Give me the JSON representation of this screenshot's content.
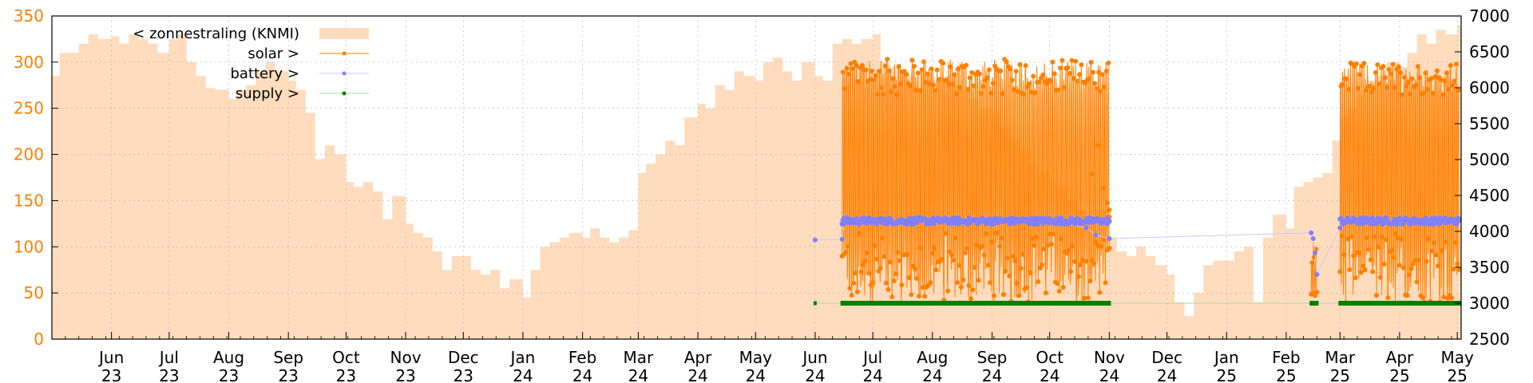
{
  "chart_data": {
    "type": "line",
    "title": "",
    "xlim": [
      "2023-05-01",
      "2025-05-03"
    ],
    "ylim_left": [
      0,
      350
    ],
    "ylim_right": [
      2500,
      7000
    ],
    "grid": true,
    "legend_placement": "top-left",
    "y_left_ticks": [
      0,
      50,
      100,
      150,
      200,
      250,
      300,
      350
    ],
    "y_right_ticks": [
      2500,
      3000,
      3500,
      4000,
      4500,
      5000,
      5500,
      6000,
      6500,
      7000
    ],
    "x_ticks": [
      {
        "date": "2023-06-01",
        "month": "Jun",
        "year": "23"
      },
      {
        "date": "2023-07-01",
        "month": "Jul",
        "year": "23"
      },
      {
        "date": "2023-08-01",
        "month": "Aug",
        "year": "23"
      },
      {
        "date": "2023-09-01",
        "month": "Sep",
        "year": "23"
      },
      {
        "date": "2023-10-01",
        "month": "Oct",
        "year": "23"
      },
      {
        "date": "2023-11-01",
        "month": "Nov",
        "year": "23"
      },
      {
        "date": "2023-12-01",
        "month": "Dec",
        "year": "23"
      },
      {
        "date": "2024-01-01",
        "month": "Jan",
        "year": "24"
      },
      {
        "date": "2024-02-01",
        "month": "Feb",
        "year": "24"
      },
      {
        "date": "2024-03-01",
        "month": "Mar",
        "year": "24"
      },
      {
        "date": "2024-04-01",
        "month": "Apr",
        "year": "24"
      },
      {
        "date": "2024-05-01",
        "month": "May",
        "year": "24"
      },
      {
        "date": "2024-06-01",
        "month": "Jun",
        "year": "24"
      },
      {
        "date": "2024-07-01",
        "month": "Jul",
        "year": "24"
      },
      {
        "date": "2024-08-01",
        "month": "Aug",
        "year": "24"
      },
      {
        "date": "2024-09-01",
        "month": "Sep",
        "year": "24"
      },
      {
        "date": "2024-10-01",
        "month": "Oct",
        "year": "24"
      },
      {
        "date": "2024-11-01",
        "month": "Nov",
        "year": "24"
      },
      {
        "date": "2024-12-01",
        "month": "Dec",
        "year": "24"
      },
      {
        "date": "2025-01-01",
        "month": "Jan",
        "year": "25"
      },
      {
        "date": "2025-02-01",
        "month": "Feb",
        "year": "25"
      },
      {
        "date": "2025-03-01",
        "month": "Mar",
        "year": "25"
      },
      {
        "date": "2025-04-01",
        "month": "Apr",
        "year": "25"
      },
      {
        "date": "2025-05-01",
        "month": "May",
        "year": "25"
      }
    ],
    "colors": {
      "zonnestraling": "#ffdcbd",
      "solar": "#ff8000",
      "battery": "#8080ff",
      "supply": "#007f00",
      "left_axis": "#ff8000"
    },
    "series": [
      {
        "name": "< zonnestraling (KNMI)",
        "axis": "left",
        "style": "area",
        "points": [
          [
            "2023-05-01",
            285
          ],
          [
            "2023-05-05",
            310
          ],
          [
            "2023-05-10",
            310
          ],
          [
            "2023-05-15",
            320
          ],
          [
            "2023-05-20",
            330
          ],
          [
            "2023-05-25",
            325
          ],
          [
            "2023-06-01",
            328
          ],
          [
            "2023-06-05",
            320
          ],
          [
            "2023-06-10",
            330
          ],
          [
            "2023-06-15",
            325
          ],
          [
            "2023-06-20",
            320
          ],
          [
            "2023-06-25",
            310
          ],
          [
            "2023-07-01",
            325
          ],
          [
            "2023-07-05",
            330
          ],
          [
            "2023-07-10",
            300
          ],
          [
            "2023-07-15",
            285
          ],
          [
            "2023-07-20",
            272
          ],
          [
            "2023-07-25",
            270
          ],
          [
            "2023-08-01",
            260
          ],
          [
            "2023-08-05",
            270
          ],
          [
            "2023-08-10",
            275
          ],
          [
            "2023-08-15",
            290
          ],
          [
            "2023-08-20",
            300
          ],
          [
            "2023-08-25",
            290
          ],
          [
            "2023-09-01",
            280
          ],
          [
            "2023-09-05",
            270
          ],
          [
            "2023-09-10",
            245
          ],
          [
            "2023-09-15",
            195
          ],
          [
            "2023-09-20",
            210
          ],
          [
            "2023-09-25",
            200
          ],
          [
            "2023-10-01",
            170
          ],
          [
            "2023-10-05",
            165
          ],
          [
            "2023-10-10",
            170
          ],
          [
            "2023-10-15",
            160
          ],
          [
            "2023-10-20",
            130
          ],
          [
            "2023-10-25",
            155
          ],
          [
            "2023-11-01",
            125
          ],
          [
            "2023-11-05",
            115
          ],
          [
            "2023-11-10",
            110
          ],
          [
            "2023-11-15",
            95
          ],
          [
            "2023-11-20",
            75
          ],
          [
            "2023-11-25",
            90
          ],
          [
            "2023-12-01",
            90
          ],
          [
            "2023-12-05",
            75
          ],
          [
            "2023-12-10",
            70
          ],
          [
            "2023-12-15",
            75
          ],
          [
            "2023-12-20",
            55
          ],
          [
            "2023-12-25",
            65
          ],
          [
            "2024-01-01",
            45
          ],
          [
            "2024-01-05",
            75
          ],
          [
            "2024-01-10",
            100
          ],
          [
            "2024-01-15",
            105
          ],
          [
            "2024-01-20",
            110
          ],
          [
            "2024-01-25",
            115
          ],
          [
            "2024-02-01",
            110
          ],
          [
            "2024-02-05",
            120
          ],
          [
            "2024-02-10",
            110
          ],
          [
            "2024-02-15",
            105
          ],
          [
            "2024-02-20",
            110
          ],
          [
            "2024-02-25",
            118
          ],
          [
            "2024-03-01",
            180
          ],
          [
            "2024-03-05",
            190
          ],
          [
            "2024-03-10",
            200
          ],
          [
            "2024-03-15",
            215
          ],
          [
            "2024-03-20",
            210
          ],
          [
            "2024-03-25",
            240
          ],
          [
            "2024-04-01",
            255
          ],
          [
            "2024-04-05",
            250
          ],
          [
            "2024-04-10",
            275
          ],
          [
            "2024-04-15",
            270
          ],
          [
            "2024-04-20",
            290
          ],
          [
            "2024-04-25",
            285
          ],
          [
            "2024-05-01",
            280
          ],
          [
            "2024-05-05",
            300
          ],
          [
            "2024-05-10",
            305
          ],
          [
            "2024-05-15",
            290
          ],
          [
            "2024-05-20",
            280
          ],
          [
            "2024-05-25",
            300
          ],
          [
            "2024-06-01",
            285
          ],
          [
            "2024-06-05",
            280
          ],
          [
            "2024-06-10",
            320
          ],
          [
            "2024-06-15",
            325
          ],
          [
            "2024-06-20",
            320
          ],
          [
            "2024-06-25",
            325
          ],
          [
            "2024-07-01",
            330
          ],
          [
            "2024-07-05",
            300
          ],
          [
            "2024-07-10",
            295
          ],
          [
            "2024-07-15",
            290
          ],
          [
            "2024-07-20",
            285
          ],
          [
            "2024-07-25",
            290
          ],
          [
            "2024-08-01",
            280
          ],
          [
            "2024-08-05",
            285
          ],
          [
            "2024-08-10",
            275
          ],
          [
            "2024-08-15",
            270
          ],
          [
            "2024-08-20",
            260
          ],
          [
            "2024-08-25",
            250
          ],
          [
            "2024-09-01",
            245
          ],
          [
            "2024-09-05",
            230
          ],
          [
            "2024-09-10",
            215
          ],
          [
            "2024-09-15",
            205
          ],
          [
            "2024-09-20",
            190
          ],
          [
            "2024-09-25",
            180
          ],
          [
            "2024-10-01",
            170
          ],
          [
            "2024-10-05",
            165
          ],
          [
            "2024-10-10",
            150
          ],
          [
            "2024-10-15",
            140
          ],
          [
            "2024-10-20",
            130
          ],
          [
            "2024-10-25",
            140
          ],
          [
            "2024-11-01",
            110
          ],
          [
            "2024-11-05",
            95
          ],
          [
            "2024-11-10",
            90
          ],
          [
            "2024-11-15",
            100
          ],
          [
            "2024-11-20",
            90
          ],
          [
            "2024-11-25",
            80
          ],
          [
            "2024-12-01",
            70
          ],
          [
            "2024-12-05",
            40
          ],
          [
            "2024-12-10",
            25
          ],
          [
            "2024-12-15",
            50
          ],
          [
            "2024-12-20",
            80
          ],
          [
            "2024-12-25",
            85
          ],
          [
            "2025-01-01",
            85
          ],
          [
            "2025-01-05",
            95
          ],
          [
            "2025-01-10",
            100
          ],
          [
            "2025-01-15",
            40
          ],
          [
            "2025-01-20",
            110
          ],
          [
            "2025-01-25",
            135
          ],
          [
            "2025-02-01",
            120
          ],
          [
            "2025-02-05",
            165
          ],
          [
            "2025-02-10",
            170
          ],
          [
            "2025-02-15",
            175
          ],
          [
            "2025-02-20",
            180
          ],
          [
            "2025-02-25",
            215
          ],
          [
            "2025-03-01",
            240
          ],
          [
            "2025-03-05",
            250
          ],
          [
            "2025-03-10",
            265
          ],
          [
            "2025-03-15",
            280
          ],
          [
            "2025-03-20",
            285
          ],
          [
            "2025-03-25",
            300
          ],
          [
            "2025-04-01",
            295
          ],
          [
            "2025-04-05",
            310
          ],
          [
            "2025-04-10",
            330
          ],
          [
            "2025-04-15",
            320
          ],
          [
            "2025-04-20",
            335
          ],
          [
            "2025-04-25",
            330
          ],
          [
            "2025-05-01",
            340
          ],
          [
            "2025-05-03",
            335
          ]
        ]
      },
      {
        "name": "solar >",
        "axis": "right",
        "style": "linespoints",
        "periods": [
          {
            "start": "2024-06-15",
            "end": "2024-11-01",
            "high": [
              5900,
              6400
            ],
            "low": [
              3000,
              4000
            ]
          },
          {
            "start": "2025-02-14",
            "end": "2025-02-17",
            "high": [
              3500,
              3900
            ],
            "low": [
              3050,
              3300
            ]
          },
          {
            "start": "2025-03-01",
            "end": "2025-05-02",
            "high": [
              5900,
              6350
            ],
            "low": [
              3000,
              4000
            ]
          }
        ],
        "drops": [
          [
            "2024-10-23",
            4800
          ],
          [
            "2024-10-26",
            5200
          ],
          [
            "2024-10-29",
            4600
          ],
          [
            "2024-11-01",
            4200
          ],
          [
            "2024-11-01",
            4300
          ],
          [
            "2024-10-31",
            4400
          ]
        ]
      },
      {
        "name": "battery >",
        "axis": "right",
        "style": "linespoints",
        "points": [
          [
            "2024-06-01",
            3880
          ],
          [
            "2024-06-15",
            3890
          ],
          [
            "2024-06-16",
            4100
          ],
          [
            "2024-07-01",
            4150
          ],
          [
            "2024-08-01",
            4160
          ],
          [
            "2024-09-01",
            4160
          ],
          [
            "2024-10-01",
            4150
          ],
          [
            "2024-10-20",
            4050
          ],
          [
            "2024-10-25",
            3950
          ],
          [
            "2024-11-01",
            3900
          ],
          [
            "2025-02-14",
            3980
          ],
          [
            "2025-02-15",
            3900
          ],
          [
            "2025-02-16",
            3700
          ],
          [
            "2025-02-17",
            3400
          ],
          [
            "2025-03-01",
            4050
          ],
          [
            "2025-03-02",
            4150
          ],
          [
            "2025-04-01",
            4160
          ],
          [
            "2025-05-02",
            4150
          ]
        ]
      },
      {
        "name": "supply >",
        "axis": "right",
        "style": "linespoints",
        "points": [
          [
            "2024-06-01",
            3000
          ],
          [
            "2024-06-15",
            3000
          ],
          [
            "2024-11-01",
            3000
          ],
          [
            "2025-02-14",
            3000
          ],
          [
            "2025-02-17",
            3000
          ],
          [
            "2025-03-01",
            3000
          ],
          [
            "2025-05-02",
            3000
          ]
        ]
      }
    ]
  }
}
